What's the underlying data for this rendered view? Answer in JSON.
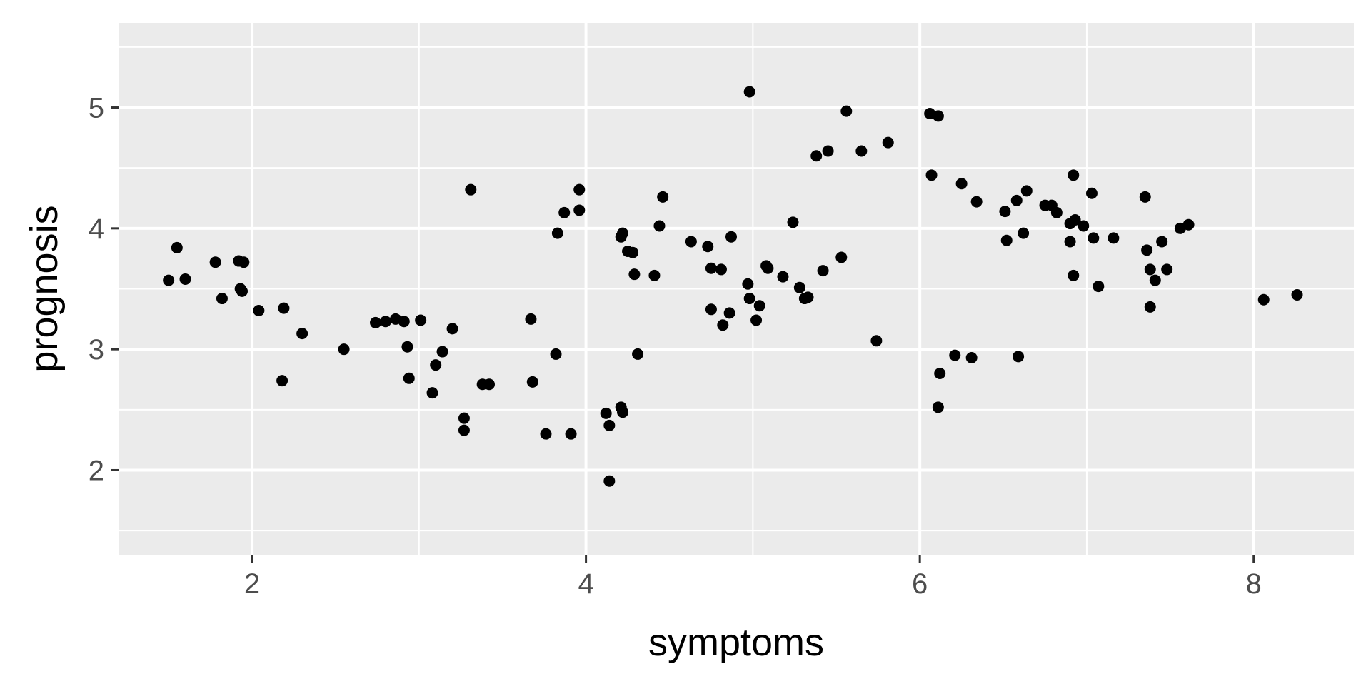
{
  "chart_data": {
    "type": "scatter",
    "xlabel": "symptoms",
    "ylabel": "prognosis",
    "xlim": [
      1.2,
      8.6
    ],
    "ylim": [
      1.3,
      5.7
    ],
    "x_ticks": [
      2,
      4,
      6,
      8
    ],
    "y_ticks": [
      2,
      3,
      4,
      5
    ],
    "x_tick_labels": [
      "2",
      "4",
      "6",
      "8"
    ],
    "y_tick_labels": [
      "2",
      "3",
      "4",
      "5"
    ],
    "grid": true,
    "legend": "none",
    "colors": {
      "panel_background": "#EBEBEB",
      "grid": "#FFFFFF",
      "point": "#000000",
      "tick_label": "#4D4D4D",
      "tick_mark": "#333333",
      "axis_title": "#000000"
    },
    "points": [
      {
        "x": 1.5,
        "y": 3.57
      },
      {
        "x": 1.55,
        "y": 3.84
      },
      {
        "x": 1.6,
        "y": 3.58
      },
      {
        "x": 1.78,
        "y": 3.72
      },
      {
        "x": 1.82,
        "y": 3.42
      },
      {
        "x": 1.92,
        "y": 3.73
      },
      {
        "x": 1.95,
        "y": 3.72
      },
      {
        "x": 1.93,
        "y": 3.5
      },
      {
        "x": 1.94,
        "y": 3.48
      },
      {
        "x": 2.04,
        "y": 3.32
      },
      {
        "x": 2.18,
        "y": 2.74
      },
      {
        "x": 2.19,
        "y": 3.34
      },
      {
        "x": 2.3,
        "y": 3.13
      },
      {
        "x": 2.55,
        "y": 3.0
      },
      {
        "x": 2.74,
        "y": 3.22
      },
      {
        "x": 2.8,
        "y": 3.23
      },
      {
        "x": 2.86,
        "y": 3.25
      },
      {
        "x": 2.91,
        "y": 3.23
      },
      {
        "x": 2.93,
        "y": 3.02
      },
      {
        "x": 2.94,
        "y": 2.76
      },
      {
        "x": 3.01,
        "y": 3.24
      },
      {
        "x": 3.08,
        "y": 2.64
      },
      {
        "x": 3.1,
        "y": 2.87
      },
      {
        "x": 3.14,
        "y": 2.98
      },
      {
        "x": 3.2,
        "y": 3.17
      },
      {
        "x": 3.27,
        "y": 2.43
      },
      {
        "x": 3.27,
        "y": 2.33
      },
      {
        "x": 3.31,
        "y": 4.32
      },
      {
        "x": 3.38,
        "y": 2.71
      },
      {
        "x": 3.42,
        "y": 2.71
      },
      {
        "x": 3.67,
        "y": 3.25
      },
      {
        "x": 3.68,
        "y": 2.73
      },
      {
        "x": 3.76,
        "y": 2.3
      },
      {
        "x": 3.82,
        "y": 2.96
      },
      {
        "x": 3.83,
        "y": 3.96
      },
      {
        "x": 3.87,
        "y": 4.13
      },
      {
        "x": 3.91,
        "y": 2.3
      },
      {
        "x": 3.96,
        "y": 4.32
      },
      {
        "x": 3.96,
        "y": 4.15
      },
      {
        "x": 4.12,
        "y": 2.47
      },
      {
        "x": 4.14,
        "y": 2.37
      },
      {
        "x": 4.14,
        "y": 1.91
      },
      {
        "x": 4.21,
        "y": 2.52
      },
      {
        "x": 4.22,
        "y": 2.48
      },
      {
        "x": 4.21,
        "y": 3.93
      },
      {
        "x": 4.22,
        "y": 3.96
      },
      {
        "x": 4.25,
        "y": 3.81
      },
      {
        "x": 4.28,
        "y": 3.8
      },
      {
        "x": 4.29,
        "y": 3.62
      },
      {
        "x": 4.31,
        "y": 2.96
      },
      {
        "x": 4.41,
        "y": 3.61
      },
      {
        "x": 4.44,
        "y": 4.02
      },
      {
        "x": 4.46,
        "y": 4.26
      },
      {
        "x": 4.63,
        "y": 3.89
      },
      {
        "x": 4.73,
        "y": 3.85
      },
      {
        "x": 4.75,
        "y": 3.67
      },
      {
        "x": 4.75,
        "y": 3.33
      },
      {
        "x": 4.81,
        "y": 3.66
      },
      {
        "x": 4.82,
        "y": 3.2
      },
      {
        "x": 4.86,
        "y": 3.3
      },
      {
        "x": 4.87,
        "y": 3.93
      },
      {
        "x": 4.97,
        "y": 3.54
      },
      {
        "x": 4.98,
        "y": 3.42
      },
      {
        "x": 4.98,
        "y": 5.13
      },
      {
        "x": 5.02,
        "y": 3.24
      },
      {
        "x": 5.04,
        "y": 3.36
      },
      {
        "x": 5.08,
        "y": 3.69
      },
      {
        "x": 5.09,
        "y": 3.67
      },
      {
        "x": 5.18,
        "y": 3.6
      },
      {
        "x": 5.24,
        "y": 4.05
      },
      {
        "x": 5.28,
        "y": 3.51
      },
      {
        "x": 5.31,
        "y": 3.42
      },
      {
        "x": 5.33,
        "y": 3.43
      },
      {
        "x": 5.38,
        "y": 4.6
      },
      {
        "x": 5.42,
        "y": 3.65
      },
      {
        "x": 5.45,
        "y": 4.64
      },
      {
        "x": 5.53,
        "y": 3.76
      },
      {
        "x": 5.56,
        "y": 4.97
      },
      {
        "x": 5.65,
        "y": 4.64
      },
      {
        "x": 5.74,
        "y": 3.07
      },
      {
        "x": 5.81,
        "y": 4.71
      },
      {
        "x": 6.06,
        "y": 4.95
      },
      {
        "x": 6.11,
        "y": 4.93
      },
      {
        "x": 6.07,
        "y": 4.44
      },
      {
        "x": 6.11,
        "y": 2.52
      },
      {
        "x": 6.12,
        "y": 2.8
      },
      {
        "x": 6.21,
        "y": 2.95
      },
      {
        "x": 6.25,
        "y": 4.37
      },
      {
        "x": 6.31,
        "y": 2.93
      },
      {
        "x": 6.34,
        "y": 4.22
      },
      {
        "x": 6.51,
        "y": 4.14
      },
      {
        "x": 6.52,
        "y": 3.9
      },
      {
        "x": 6.58,
        "y": 4.23
      },
      {
        "x": 6.59,
        "y": 2.94
      },
      {
        "x": 6.62,
        "y": 3.96
      },
      {
        "x": 6.64,
        "y": 4.31
      },
      {
        "x": 6.75,
        "y": 4.19
      },
      {
        "x": 6.79,
        "y": 4.19
      },
      {
        "x": 6.82,
        "y": 4.13
      },
      {
        "x": 6.9,
        "y": 4.04
      },
      {
        "x": 6.9,
        "y": 3.89
      },
      {
        "x": 6.92,
        "y": 3.61
      },
      {
        "x": 6.92,
        "y": 4.44
      },
      {
        "x": 6.93,
        "y": 4.07
      },
      {
        "x": 6.98,
        "y": 4.02
      },
      {
        "x": 7.03,
        "y": 4.29
      },
      {
        "x": 7.04,
        "y": 3.92
      },
      {
        "x": 7.07,
        "y": 3.52
      },
      {
        "x": 7.16,
        "y": 3.92
      },
      {
        "x": 7.35,
        "y": 4.26
      },
      {
        "x": 7.36,
        "y": 3.82
      },
      {
        "x": 7.38,
        "y": 3.66
      },
      {
        "x": 7.38,
        "y": 3.35
      },
      {
        "x": 7.41,
        "y": 3.57
      },
      {
        "x": 7.45,
        "y": 3.89
      },
      {
        "x": 7.48,
        "y": 3.66
      },
      {
        "x": 7.56,
        "y": 4.0
      },
      {
        "x": 7.61,
        "y": 4.03
      },
      {
        "x": 8.06,
        "y": 3.41
      },
      {
        "x": 8.26,
        "y": 3.45
      }
    ]
  }
}
